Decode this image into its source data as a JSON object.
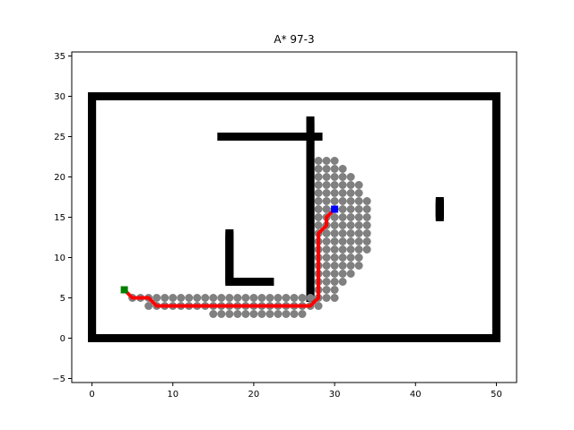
{
  "chart_data": {
    "type": "scatter",
    "title": "A* 97-3",
    "xlabel": "",
    "ylabel": "",
    "xlim": [
      -2.5,
      52.5
    ],
    "ylim": [
      -5.5,
      35.5
    ],
    "xticks": [
      0,
      10,
      20,
      30,
      40,
      50
    ],
    "yticks": [
      -5,
      0,
      5,
      10,
      15,
      20,
      25,
      30,
      35
    ],
    "grid": false,
    "colors": {
      "obstacle": "#000000",
      "explored": "#808080",
      "path": "#ff0000",
      "start": "#008000",
      "goal": "#0000ff"
    },
    "obstacle_segments": [
      [
        [
          0,
          0
        ],
        [
          50,
          0
        ]
      ],
      [
        [
          0,
          30
        ],
        [
          50,
          30
        ]
      ],
      [
        [
          0,
          0
        ],
        [
          0,
          30
        ]
      ],
      [
        [
          50,
          0
        ],
        [
          50,
          30
        ]
      ],
      [
        [
          16,
          25
        ],
        [
          28,
          25
        ]
      ],
      [
        [
          27,
          5
        ],
        [
          27,
          27
        ]
      ],
      [
        [
          17,
          7
        ],
        [
          17,
          13
        ]
      ],
      [
        [
          17,
          7
        ],
        [
          22,
          7
        ]
      ],
      [
        [
          43,
          15
        ],
        [
          43,
          17
        ]
      ]
    ],
    "explored_rows": [
      {
        "y": 3,
        "x": [
          15,
          26
        ]
      },
      {
        "y": 4,
        "x": [
          7,
          28
        ]
      },
      {
        "y": 5,
        "x": [
          5,
          30
        ]
      },
      {
        "y": 6,
        "x": [
          28,
          30
        ]
      },
      {
        "y": 7,
        "x": [
          28,
          31
        ]
      },
      {
        "y": 8,
        "x": [
          28,
          32
        ]
      },
      {
        "y": 9,
        "x": [
          28,
          33
        ]
      },
      {
        "y": 10,
        "x": [
          28,
          33
        ]
      },
      {
        "y": 11,
        "x": [
          28,
          34
        ]
      },
      {
        "y": 12,
        "x": [
          28,
          34
        ]
      },
      {
        "y": 13,
        "x": [
          28,
          34
        ]
      },
      {
        "y": 14,
        "x": [
          28,
          34
        ]
      },
      {
        "y": 15,
        "x": [
          28,
          34
        ]
      },
      {
        "y": 16,
        "x": [
          28,
          34
        ]
      },
      {
        "y": 17,
        "x": [
          28,
          34
        ]
      },
      {
        "y": 18,
        "x": [
          28,
          33
        ]
      },
      {
        "y": 19,
        "x": [
          28,
          33
        ]
      },
      {
        "y": 20,
        "x": [
          28,
          32
        ]
      },
      {
        "y": 21,
        "x": [
          28,
          31
        ]
      },
      {
        "y": 22,
        "x": [
          28,
          30
        ]
      }
    ],
    "path": [
      [
        4,
        6
      ],
      [
        5,
        5
      ],
      [
        6,
        5
      ],
      [
        7,
        5
      ],
      [
        8,
        4
      ],
      [
        9,
        4
      ],
      [
        10,
        4
      ],
      [
        11,
        4
      ],
      [
        12,
        4
      ],
      [
        13,
        4
      ],
      [
        14,
        4
      ],
      [
        15,
        4
      ],
      [
        16,
        4
      ],
      [
        17,
        4
      ],
      [
        18,
        4
      ],
      [
        19,
        4
      ],
      [
        20,
        4
      ],
      [
        21,
        4
      ],
      [
        22,
        4
      ],
      [
        23,
        4
      ],
      [
        24,
        4
      ],
      [
        25,
        4
      ],
      [
        26,
        4
      ],
      [
        27,
        4
      ],
      [
        28,
        5
      ],
      [
        28,
        6
      ],
      [
        28,
        7
      ],
      [
        28,
        8
      ],
      [
        28,
        9
      ],
      [
        28,
        10
      ],
      [
        28,
        11
      ],
      [
        28,
        12
      ],
      [
        28,
        13
      ],
      [
        29,
        14
      ],
      [
        29,
        15
      ],
      [
        30,
        16
      ]
    ],
    "start": [
      4,
      6
    ],
    "goal": [
      30,
      16
    ]
  }
}
